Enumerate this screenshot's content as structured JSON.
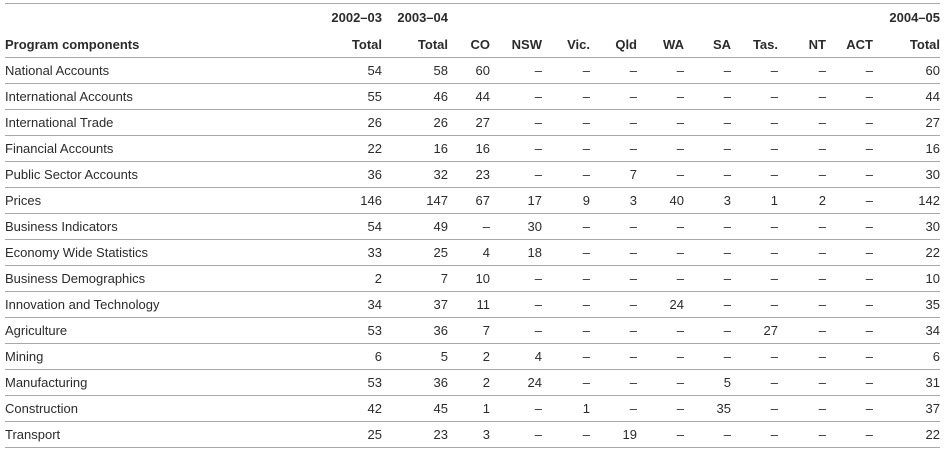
{
  "header": {
    "year_2002_03": "2002–03",
    "year_2003_04": "2003–04",
    "year_2004_05": "2004–05",
    "columns": [
      "Program components",
      "Total",
      "Total",
      "CO",
      "NSW",
      "Vic.",
      "Qld",
      "WA",
      "SA",
      "Tas.",
      "NT",
      "ACT",
      "Total"
    ]
  },
  "rows": [
    [
      "National Accounts",
      "54",
      "58",
      "60",
      "–",
      "–",
      "–",
      "–",
      "–",
      "–",
      "–",
      "–",
      "60"
    ],
    [
      "International Accounts",
      "55",
      "46",
      "44",
      "–",
      "–",
      "–",
      "–",
      "–",
      "–",
      "–",
      "–",
      "44"
    ],
    [
      "International Trade",
      "26",
      "26",
      "27",
      "–",
      "–",
      "–",
      "–",
      "–",
      "–",
      "–",
      "–",
      "27"
    ],
    [
      "Financial Accounts",
      "22",
      "16",
      "16",
      "–",
      "–",
      "–",
      "–",
      "–",
      "–",
      "–",
      "–",
      "16"
    ],
    [
      "Public Sector Accounts",
      "36",
      "32",
      "23",
      "–",
      "–",
      "7",
      "–",
      "–",
      "–",
      "–",
      "–",
      "30"
    ],
    [
      "Prices",
      "146",
      "147",
      "67",
      "17",
      "9",
      "3",
      "40",
      "3",
      "1",
      "2",
      "–",
      "142"
    ],
    [
      "Business Indicators",
      "54",
      "49",
      "–",
      "30",
      "–",
      "–",
      "–",
      "–",
      "–",
      "–",
      "–",
      "30"
    ],
    [
      "Economy Wide Statistics",
      "33",
      "25",
      "4",
      "18",
      "–",
      "–",
      "–",
      "–",
      "–",
      "–",
      "–",
      "22"
    ],
    [
      "Business Demographics",
      "2",
      "7",
      "10",
      "–",
      "–",
      "–",
      "–",
      "–",
      "–",
      "–",
      "–",
      "10"
    ],
    [
      "Innovation and Technology",
      "34",
      "37",
      "11",
      "–",
      "–",
      "–",
      "24",
      "–",
      "–",
      "–",
      "–",
      "35"
    ],
    [
      "Agriculture",
      "53",
      "36",
      "7",
      "–",
      "–",
      "–",
      "–",
      "–",
      "27",
      "–",
      "–",
      "34"
    ],
    [
      "Mining",
      "6",
      "5",
      "2",
      "4",
      "–",
      "–",
      "–",
      "–",
      "–",
      "–",
      "–",
      "6"
    ],
    [
      "Manufacturing",
      "53",
      "36",
      "2",
      "24",
      "–",
      "–",
      "–",
      "5",
      "–",
      "–",
      "–",
      "31"
    ],
    [
      "Construction",
      "42",
      "45",
      "1",
      "–",
      "1",
      "–",
      "–",
      "35",
      "–",
      "–",
      "–",
      "37"
    ],
    [
      "Transport",
      "25",
      "23",
      "3",
      "–",
      "–",
      "19",
      "–",
      "–",
      "–",
      "–",
      "–",
      "22"
    ]
  ]
}
